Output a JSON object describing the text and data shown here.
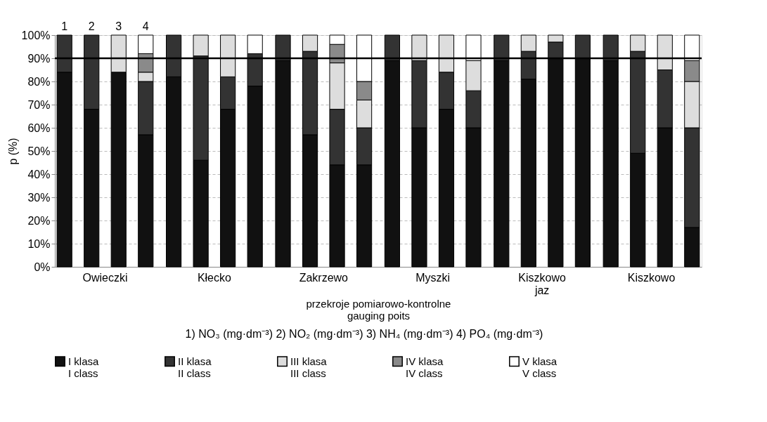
{
  "chart_data": {
    "type": "bar",
    "stacked": true,
    "ylabel": "p (%)",
    "xlabel": "przekroje pomiarowo-kontrolne\ngauging poits",
    "categories": [
      "1",
      "2",
      "3",
      "4",
      null,
      null,
      null,
      null,
      null,
      null,
      null,
      null,
      null,
      null,
      null,
      null,
      null,
      null,
      null,
      null,
      null,
      null,
      null,
      null
    ],
    "annotations": [
      "Owieczki",
      "Kłecko",
      "Zakrzewo",
      "Myszki",
      "Kiszkowo\njaz",
      "Kiszkowo",
      "1) NO₃ (mg·dm⁻³) 2) NO₂ (mg·dm⁻³) 3) NH₄ (mg·dm⁻³) 4) PO₄ (mg·dm⁻³)"
    ],
    "series": [
      {
        "name": "I klasa\nI class",
        "color": "#111111",
        "values": [
          84,
          68,
          84,
          57,
          82,
          46,
          68,
          78,
          89,
          57,
          44,
          44,
          89,
          60,
          68,
          60,
          89,
          81,
          90,
          90,
          89,
          49,
          60,
          17
        ]
      },
      {
        "name": "II klasa\nII class",
        "color": "#333333",
        "values": [
          16,
          32,
          0,
          23,
          18,
          45,
          14,
          14,
          11,
          36,
          24,
          16,
          11,
          29,
          16,
          16,
          11,
          12,
          7,
          10,
          11,
          44,
          25,
          43
        ]
      },
      {
        "name": "III klasa\nIII class",
        "color": "#dddddd",
        "values": [
          0,
          0,
          16,
          4,
          0,
          9,
          18,
          0,
          0,
          7,
          20,
          12,
          0,
          11,
          16,
          13,
          0,
          7,
          3,
          0,
          0,
          7,
          15,
          20
        ]
      },
      {
        "name": "IV klasa\nIV class",
        "color": "#8a8a8a",
        "values": [
          0,
          0,
          0,
          8,
          0,
          0,
          0,
          0,
          0,
          0,
          8,
          8,
          0,
          0,
          0,
          0,
          0,
          0,
          0,
          0,
          0,
          0,
          0,
          9
        ]
      },
      {
        "name": "V klasa\nV class",
        "color": "#ffffff",
        "values": [
          0,
          0,
          0,
          8,
          0,
          0,
          0,
          8,
          0,
          0,
          4,
          20,
          0,
          0,
          0,
          11,
          0,
          0,
          0,
          0,
          0,
          0,
          0,
          11
        ]
      }
    ],
    "ylim": [
      0,
      100
    ],
    "yticks": [
      {
        "value": 0,
        "label": "0%"
      },
      {
        "value": 10,
        "label": "10%"
      },
      {
        "value": 20,
        "label": "20%"
      },
      {
        "value": 30,
        "label": "30%"
      },
      {
        "value": 40,
        "label": "40%"
      },
      {
        "value": 50,
        "label": "50%"
      },
      {
        "value": 60,
        "label": "60%"
      },
      {
        "value": 70,
        "label": "70%"
      },
      {
        "value": 80,
        "label": "80%"
      },
      {
        "value": 90,
        "label": "90%"
      },
      {
        "value": 100,
        "label": "100%"
      }
    ],
    "ref_lines": [
      {
        "axis": "y",
        "value": 90,
        "label": null,
        "color": "#000000"
      }
    ],
    "grid": "y",
    "legend": "bottom"
  }
}
